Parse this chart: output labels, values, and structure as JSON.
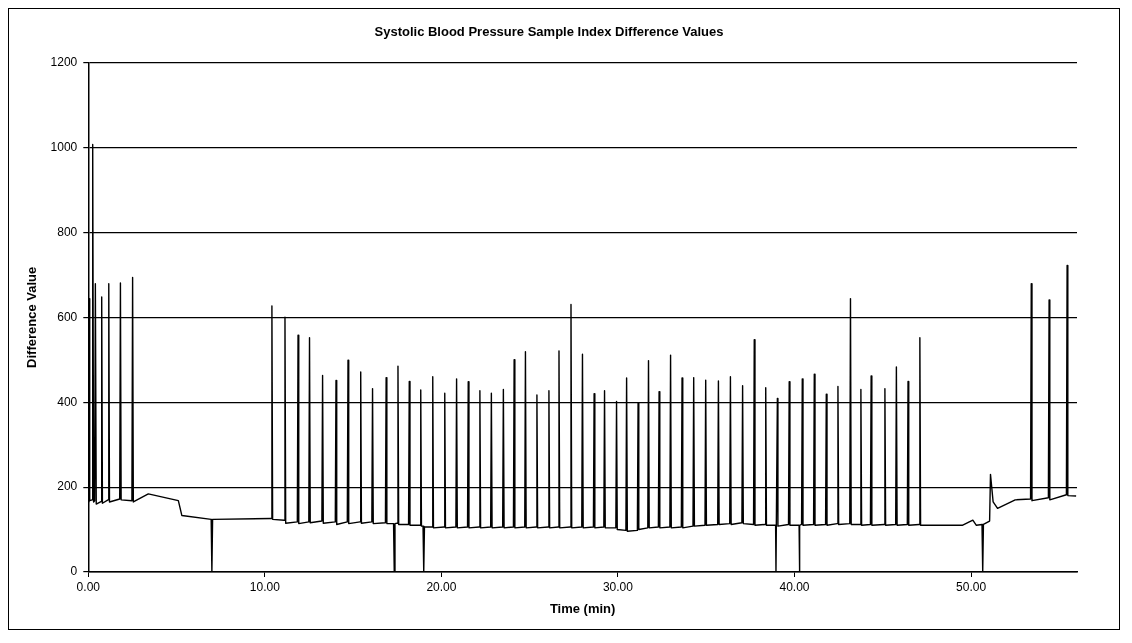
{
  "chart_data": {
    "type": "line",
    "title": "Systolic Blood Pressure Sample Index Difference Values",
    "xlabel": "Time (min)",
    "ylabel": "Difference Value",
    "xlim": [
      0,
      56
    ],
    "xticks": [
      {
        "value": 0,
        "label": "0.00"
      },
      {
        "value": 10,
        "label": "10.00"
      },
      {
        "value": 20,
        "label": "20.00"
      },
      {
        "value": 30,
        "label": "30.00"
      },
      {
        "value": 40,
        "label": "40.00"
      },
      {
        "value": 50,
        "label": "50.00"
      }
    ],
    "ylim": [
      0,
      1200
    ],
    "yticks": [
      0,
      200,
      400,
      600,
      800,
      1000,
      1200
    ],
    "grid": "y",
    "legend": false,
    "marker": "none",
    "line_style": "solid",
    "series": [
      {
        "color": "#000000",
        "x": [
          0,
          0.02,
          0.04,
          0.08,
          0.22,
          0.25,
          0.3,
          0.36,
          0.4,
          0.45,
          0.72,
          0.76,
          0.8,
          1.12,
          1.16,
          1.2,
          1.78,
          1.82,
          1.86,
          2.47,
          2.51,
          2.55,
          3.4,
          5.1,
          5.3,
          6.96,
          7.0,
          7.04,
          10.36,
          10.4,
          10.44,
          11.1,
          11.14,
          11.18,
          11.84,
          11.88,
          11.92,
          12.49,
          12.53,
          12.57,
          13.23,
          13.27,
          13.31,
          13.99,
          14.03,
          14.07,
          14.67,
          14.71,
          14.75,
          15.39,
          15.43,
          15.47,
          16.06,
          16.1,
          16.14,
          16.83,
          16.87,
          16.91,
          17.29,
          17.33,
          17.37,
          17.5,
          17.54,
          17.58,
          18.14,
          18.18,
          18.22,
          18.79,
          18.83,
          18.87,
          18.96,
          19.0,
          19.04,
          19.47,
          19.51,
          19.55,
          20.15,
          20.19,
          20.23,
          20.82,
          20.86,
          20.9,
          21.48,
          21.52,
          21.56,
          22.14,
          22.18,
          22.22,
          22.79,
          22.83,
          22.87,
          23.47,
          23.51,
          23.55,
          24.08,
          24.12,
          24.16,
          24.72,
          24.76,
          24.8,
          25.37,
          25.41,
          25.45,
          26.05,
          26.09,
          26.13,
          26.62,
          26.66,
          26.7,
          27.3,
          27.34,
          27.38,
          27.95,
          27.99,
          28.03,
          28.61,
          28.65,
          28.69,
          29.2,
          29.24,
          29.28,
          29.88,
          29.92,
          29.96,
          30.45,
          30.49,
          30.53,
          31.1,
          31.14,
          31.18,
          31.69,
          31.73,
          31.77,
          32.29,
          32.33,
          32.37,
          32.94,
          32.98,
          33.02,
          33.59,
          33.63,
          33.67,
          34.25,
          34.29,
          34.33,
          34.93,
          34.97,
          35.01,
          35.65,
          35.69,
          35.73,
          36.33,
          36.37,
          36.41,
          37.02,
          37.06,
          37.1,
          37.68,
          37.72,
          37.76,
          38.33,
          38.37,
          38.41,
          38.93,
          38.95,
          38.97,
          39.0,
          39.03,
          39.06,
          39.66,
          39.7,
          39.74,
          40.26,
          40.28,
          40.3,
          40.4,
          40.44,
          40.48,
          41.08,
          41.12,
          41.16,
          41.76,
          41.8,
          41.84,
          42.42,
          42.46,
          42.5,
          43.13,
          43.17,
          43.21,
          43.72,
          43.76,
          43.8,
          44.3,
          44.34,
          44.38,
          45.08,
          45.12,
          45.16,
          45.73,
          45.77,
          45.81,
          46.39,
          46.43,
          46.47,
          47.06,
          47.1,
          47.14,
          49.5,
          50.1,
          50.3,
          50.62,
          50.66,
          50.7,
          51.05,
          51.1,
          51.25,
          51.5,
          52.5,
          53.37,
          53.41,
          53.45,
          54.38,
          54.42,
          54.46,
          55.4,
          55.44,
          55.48,
          55.95
        ],
        "values": [
          165,
          170,
          644,
          168,
          170,
          1007,
          165,
          168,
          679,
          160,
          166,
          648,
          162,
          170,
          679,
          165,
          172,
          681,
          170,
          168,
          694,
          165,
          184,
          168,
          133,
          124,
          0,
          124,
          126,
          627,
          124,
          122,
          600,
          115,
          118,
          558,
          114,
          118,
          552,
          116,
          120,
          463,
          115,
          118,
          451,
          112,
          118,
          499,
          114,
          118,
          471,
          115,
          118,
          432,
          114,
          116,
          458,
          114,
          114,
          0,
          114,
          115,
          485,
          112,
          112,
          449,
          110,
          110,
          429,
          108,
          108,
          0,
          106,
          106,
          460,
          104,
          106,
          421,
          104,
          106,
          455,
          104,
          106,
          448,
          104,
          106,
          427,
          104,
          106,
          421,
          104,
          106,
          430,
          104,
          106,
          500,
          104,
          106,
          519,
          104,
          106,
          417,
          104,
          106,
          427,
          104,
          106,
          521,
          104,
          106,
          630,
          104,
          106,
          513,
          104,
          106,
          420,
          104,
          106,
          427,
          104,
          104,
          402,
          100,
          98,
          457,
          96,
          98,
          398,
          100,
          104,
          498,
          104,
          106,
          425,
          104,
          106,
          511,
          104,
          106,
          457,
          104,
          108,
          458,
          108,
          110,
          452,
          110,
          112,
          450,
          112,
          114,
          460,
          112,
          116,
          439,
          114,
          112,
          547,
          110,
          112,
          434,
          110,
          110,
          0,
          110,
          110,
          409,
          108,
          112,
          448,
          110,
          110,
          0,
          110,
          112,
          455,
          110,
          112,
          466,
          110,
          112,
          419,
          110,
          114,
          437,
          112,
          114,
          644,
          112,
          112,
          430,
          110,
          112,
          462,
          110,
          112,
          432,
          110,
          112,
          483,
          110,
          112,
          449,
          110,
          112,
          552,
          110,
          110,
          122,
          110,
          112,
          0,
          112,
          120,
          230,
          165,
          150,
          170,
          172,
          679,
          168,
          175,
          641,
          170,
          182,
          722,
          180,
          179
        ]
      }
    ]
  }
}
